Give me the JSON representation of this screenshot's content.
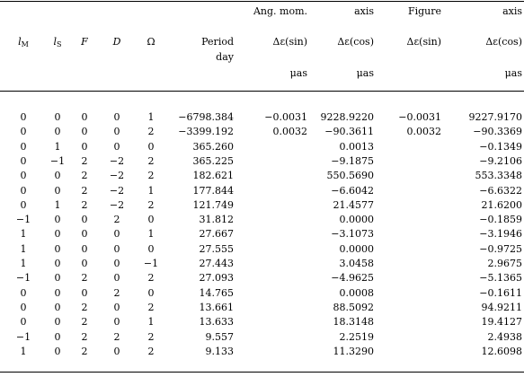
{
  "header": {
    "group_am": "Ang. mom.",
    "axis1": "axis",
    "group_fig": "Figure",
    "axis2": "axis",
    "l_sym": "l",
    "l_sub": "M",
    "ls_sym": "l",
    "ls_sub": "S",
    "F": "F",
    "D": "D",
    "Omega": "Ω",
    "period": "Period",
    "day": "day",
    "de_sin_1": "Δε(sin)",
    "de_cos_1": "Δε(cos)",
    "de_sin_2": "Δε(sin)",
    "de_cos_2": "Δε(cos)",
    "unit1": "μas",
    "unit2": "μas",
    "unit3": "μas"
  },
  "rows": [
    [
      "0",
      "0",
      "0",
      "0",
      "1",
      "−6798.384",
      "−0.0031",
      "9228.9220",
      "−0.0031",
      "9227.9170"
    ],
    [
      "0",
      "0",
      "0",
      "0",
      "2",
      "−3399.192",
      "0.0032",
      "−90.3611",
      "0.0032",
      "−90.3369"
    ],
    [
      "0",
      "1",
      "0",
      "0",
      "0",
      "365.260",
      "",
      "0.0013",
      "",
      "−0.1349"
    ],
    [
      "0",
      "−1",
      "2",
      "−2",
      "2",
      "365.225",
      "",
      "−9.1875",
      "",
      "−9.2106"
    ],
    [
      "0",
      "0",
      "2",
      "−2",
      "2",
      "182.621",
      "",
      "550.5690",
      "",
      "553.3348"
    ],
    [
      "0",
      "0",
      "2",
      "−2",
      "1",
      "177.844",
      "",
      "−6.6042",
      "",
      "−6.6322"
    ],
    [
      "0",
      "1",
      "2",
      "−2",
      "2",
      "121.749",
      "",
      "21.4577",
      "",
      "21.6200"
    ],
    [
      "−1",
      "0",
      "0",
      "2",
      "0",
      "31.812",
      "",
      "0.0000",
      "",
      "−0.1859"
    ],
    [
      "1",
      "0",
      "0",
      "0",
      "1",
      "27.667",
      "",
      "−3.1073",
      "",
      "−3.1946"
    ],
    [
      "1",
      "0",
      "0",
      "0",
      "0",
      "27.555",
      "",
      "0.0000",
      "",
      "−0.9725"
    ],
    [
      "1",
      "0",
      "0",
      "0",
      "−1",
      "27.443",
      "",
      "3.0458",
      "",
      "2.9675"
    ],
    [
      "−1",
      "0",
      "2",
      "0",
      "2",
      "27.093",
      "",
      "−4.9625",
      "",
      "−5.1365"
    ],
    [
      "0",
      "0",
      "0",
      "2",
      "0",
      "14.765",
      "",
      "0.0008",
      "",
      "−0.1611"
    ],
    [
      "0",
      "0",
      "2",
      "0",
      "2",
      "13.661",
      "",
      "88.5092",
      "",
      "94.9211"
    ],
    [
      "0",
      "0",
      "2",
      "0",
      "1",
      "13.633",
      "",
      "18.3148",
      "",
      "19.4127"
    ],
    [
      "−1",
      "0",
      "2",
      "2",
      "2",
      "9.557",
      "",
      "2.2519",
      "",
      "2.4938"
    ],
    [
      "1",
      "0",
      "2",
      "0",
      "2",
      "9.133",
      "",
      "11.3290",
      "",
      "12.6098"
    ]
  ]
}
